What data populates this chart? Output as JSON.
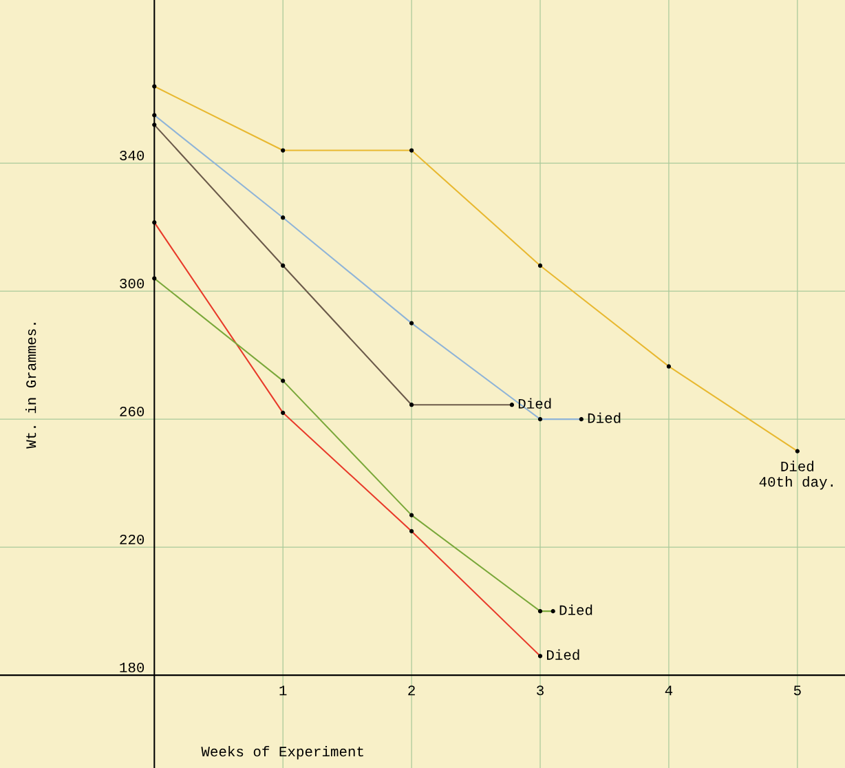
{
  "chart_data": {
    "type": "line",
    "xlabel": "Weeks of Experiment",
    "ylabel": "Wt. in Grammes.",
    "xlim": [
      -1.2,
      5.37
    ],
    "ylim": [
      151,
      391
    ],
    "xticks": [
      1,
      2,
      3,
      4,
      5
    ],
    "yticks": [
      180,
      220,
      260,
      300,
      340
    ],
    "grid": true,
    "marker": "circle",
    "line_style": "solid",
    "series": [
      {
        "color": "#e8b830",
        "x": [
          0,
          1,
          2,
          3,
          4,
          5
        ],
        "values": [
          364,
          344,
          344,
          308,
          276.5,
          250
        ]
      },
      {
        "color": "#8fb4d8",
        "x": [
          0,
          1,
          2,
          3,
          3.32
        ],
        "values": [
          355,
          323,
          290,
          260,
          260
        ]
      },
      {
        "color": "#6b5a4a",
        "x": [
          0,
          1,
          2,
          2.78
        ],
        "values": [
          352,
          308,
          264.5,
          264.5
        ]
      },
      {
        "color": "#e83a2a",
        "x": [
          0,
          1,
          2,
          3
        ],
        "values": [
          321.5,
          262,
          225,
          186
        ]
      },
      {
        "color": "#7aa83a",
        "x": [
          0,
          1,
          2,
          3,
          3.1
        ],
        "values": [
          304,
          272,
          230,
          200,
          200
        ]
      }
    ],
    "annotations": [
      {
        "text": "Died",
        "x": 3.32,
        "y": 260
      },
      {
        "text": "Died",
        "x": 2.78,
        "y": 264.5
      },
      {
        "text": "Died\n40th day.",
        "x": 5,
        "y": 250
      },
      {
        "text": "Died",
        "x": 3.1,
        "y": 200
      },
      {
        "text": "Died",
        "x": 3,
        "y": 186
      }
    ]
  }
}
